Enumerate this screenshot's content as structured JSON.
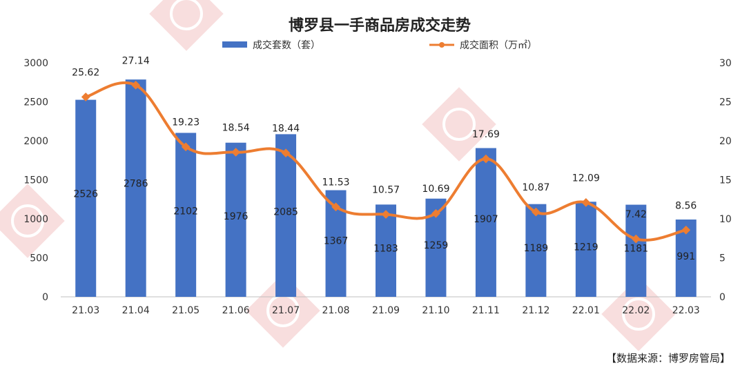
{
  "chart_data": {
    "type": "bar",
    "title": "博罗县一手商品房成交走势",
    "categories": [
      "21.03",
      "21.04",
      "21.05",
      "21.06",
      "21.07",
      "21.08",
      "21.09",
      "21.10",
      "21.11",
      "21.12",
      "22.01",
      "22.02",
      "22.03"
    ],
    "series": [
      {
        "name": "成交套数（套）",
        "type": "bar",
        "axis": "left",
        "color": "#4472C4",
        "values": [
          2526,
          2786,
          2102,
          1976,
          2085,
          1367,
          1183,
          1259,
          1907,
          1189,
          1219,
          1181,
          991
        ]
      },
      {
        "name": "成交面积（万㎡）",
        "type": "line",
        "axis": "right",
        "color": "#ED7D31",
        "values": [
          25.62,
          27.14,
          19.23,
          18.54,
          18.44,
          11.53,
          10.57,
          10.69,
          17.69,
          10.87,
          12.09,
          7.42,
          8.56
        ]
      }
    ],
    "y_left": {
      "ylim": [
        0,
        3000
      ],
      "ticks": [
        0,
        500,
        1000,
        1500,
        2000,
        2500,
        3000
      ]
    },
    "y_right": {
      "ylim": [
        0,
        30
      ],
      "ticks": [
        0,
        5,
        10,
        15,
        20,
        25,
        30
      ]
    },
    "grid": false,
    "legend": "top-center",
    "data_labels": true,
    "source_note": "【数据来源：博罗房管局】"
  }
}
